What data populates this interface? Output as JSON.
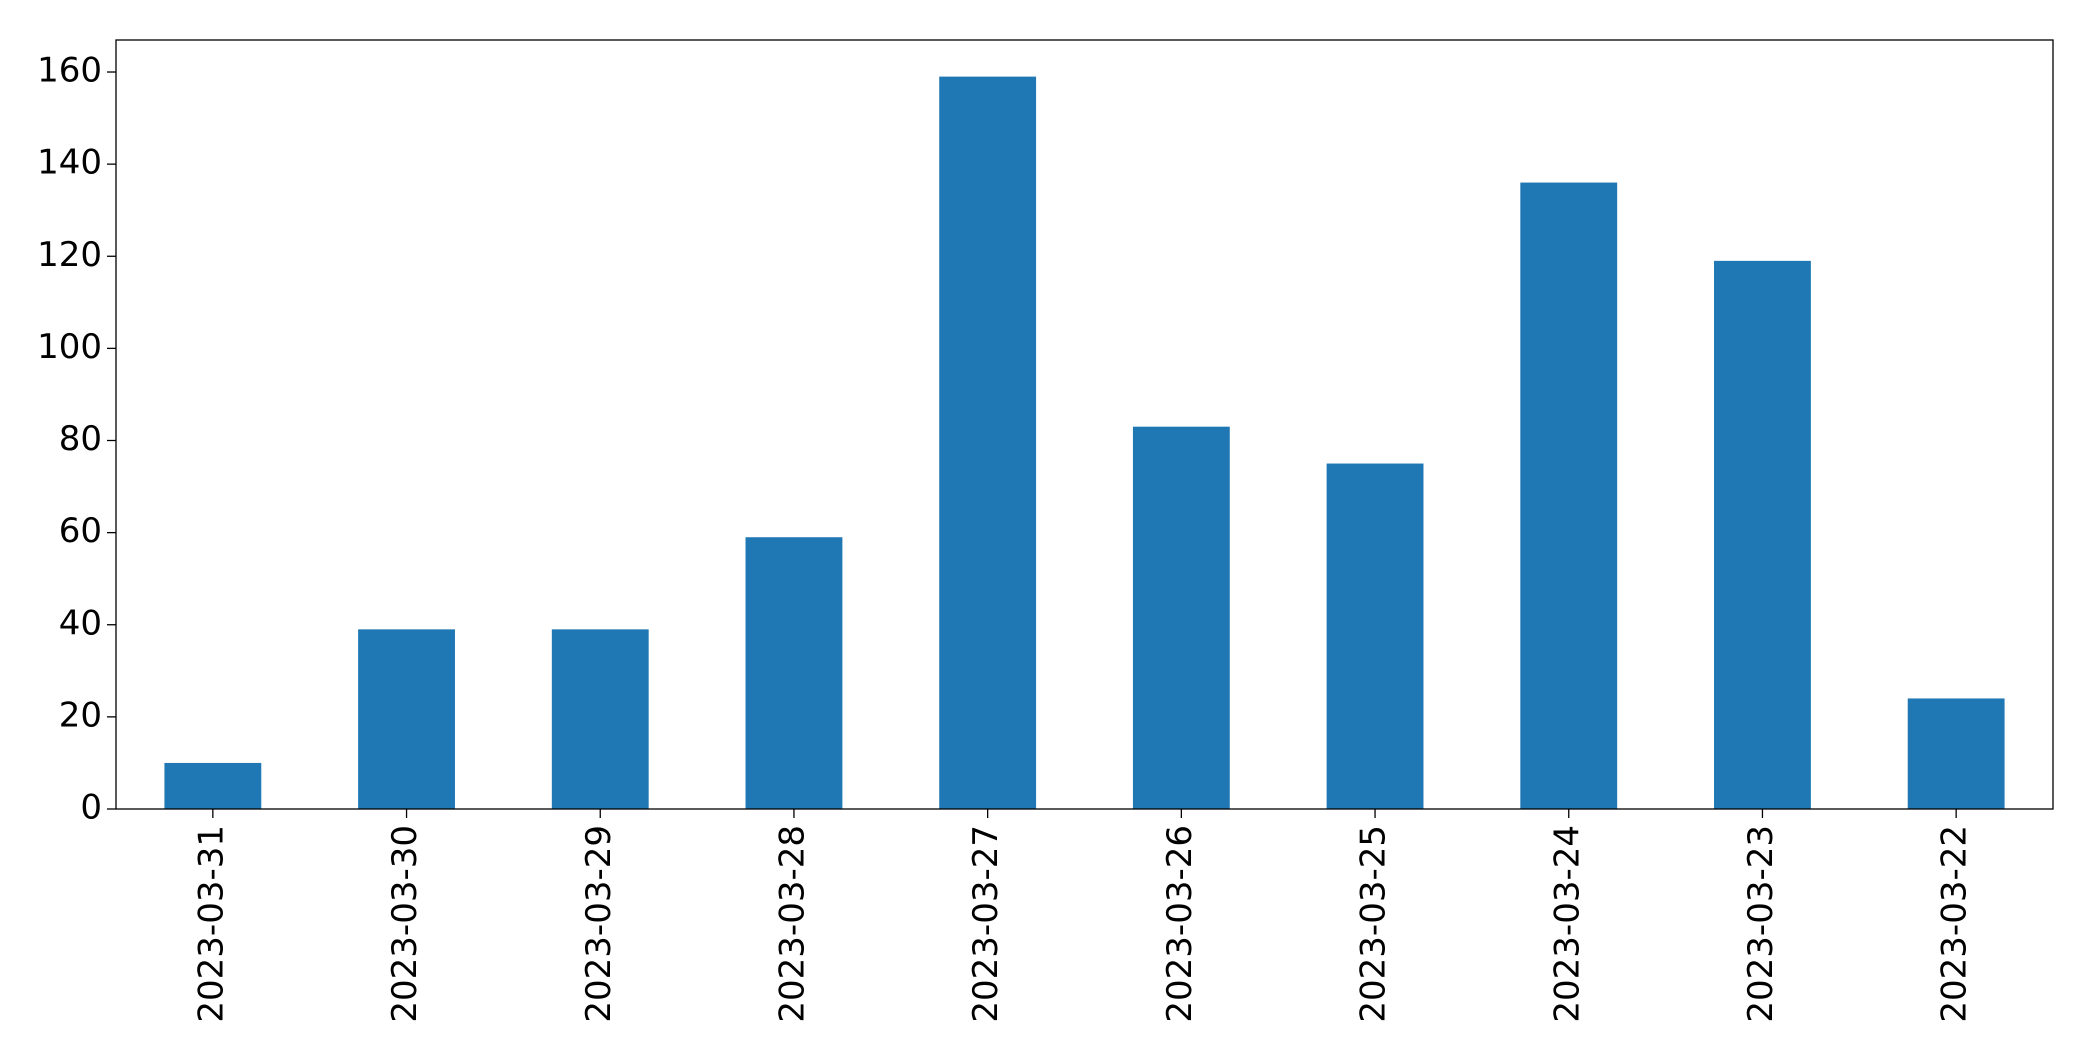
{
  "chart_data": {
    "type": "bar",
    "categories": [
      "2023-03-31",
      "2023-03-30",
      "2023-03-29",
      "2023-03-28",
      "2023-03-27",
      "2023-03-26",
      "2023-03-25",
      "2023-03-24",
      "2023-03-23",
      "2023-03-22"
    ],
    "values": [
      10,
      39,
      39,
      59,
      159,
      83,
      75,
      136,
      119,
      24
    ],
    "color": "#1f77b4",
    "ylim": [
      0,
      166.95
    ],
    "yticks": [
      0,
      20,
      40,
      60,
      80,
      100,
      120,
      140,
      160
    ],
    "grid": false
  }
}
